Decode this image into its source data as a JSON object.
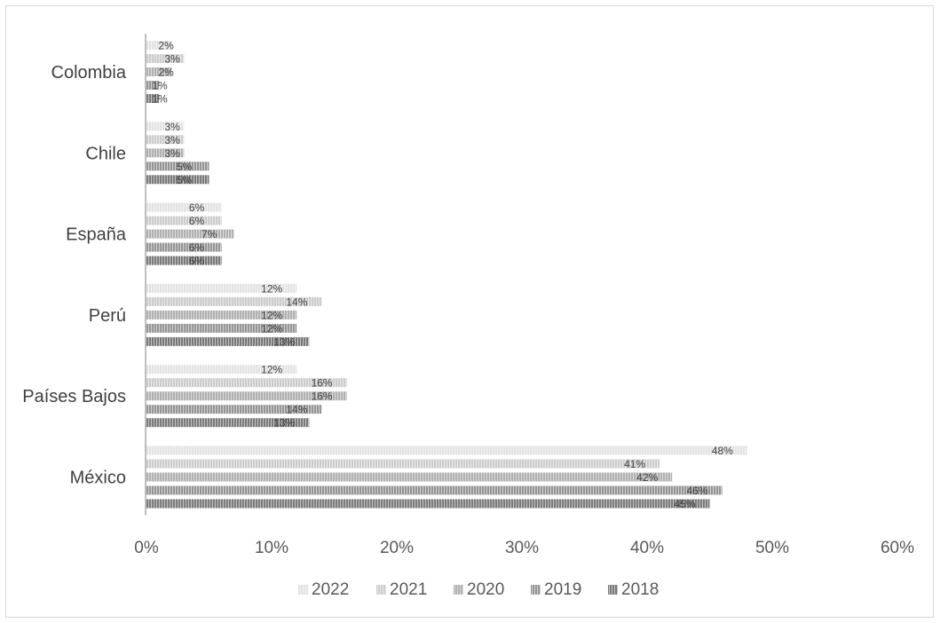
{
  "chart_data": {
    "type": "bar",
    "orientation": "horizontal",
    "categories": [
      "Colombia",
      "Chile",
      "España",
      "Perú",
      "Países Bajos",
      "México"
    ],
    "series": [
      {
        "name": "2022",
        "values": [
          2,
          3,
          6,
          12,
          12,
          48
        ],
        "labels": [
          "2%",
          "3%",
          "6%",
          "12%",
          "12%",
          "48%"
        ],
        "color": "#e3e3e3"
      },
      {
        "name": "2021",
        "values": [
          3,
          3,
          6,
          14,
          16,
          41
        ],
        "labels": [
          "3%",
          "3%",
          "6%",
          "14%",
          "16%",
          "41%"
        ],
        "color": "#cccccc"
      },
      {
        "name": "2020",
        "values": [
          2,
          3,
          7,
          12,
          16,
          42
        ],
        "labels": [
          "2%",
          "3%",
          "7%",
          "12%",
          "16%",
          "42%"
        ],
        "color": "#b0b0b0"
      },
      {
        "name": "2019",
        "values": [
          1,
          5,
          6,
          12,
          14,
          46
        ],
        "labels": [
          "1%",
          "5%",
          "6%",
          "12%",
          "14%",
          "46%"
        ],
        "color": "#969696"
      },
      {
        "name": "2018",
        "values": [
          1,
          5,
          6,
          13,
          13,
          45
        ],
        "labels": [
          "1%",
          "5%",
          "6%",
          "13%",
          "13%",
          "45%"
        ],
        "color": "#7a7a7a"
      }
    ],
    "xlim": [
      0,
      60
    ],
    "xticks": [
      "0%",
      "10%",
      "20%",
      "30%",
      "40%",
      "50%",
      "60%"
    ],
    "title": "",
    "xlabel": "",
    "ylabel": "",
    "grid": false,
    "legend_position": "bottom",
    "legend_order": [
      "2022",
      "2021",
      "2020",
      "2019",
      "2018"
    ]
  }
}
